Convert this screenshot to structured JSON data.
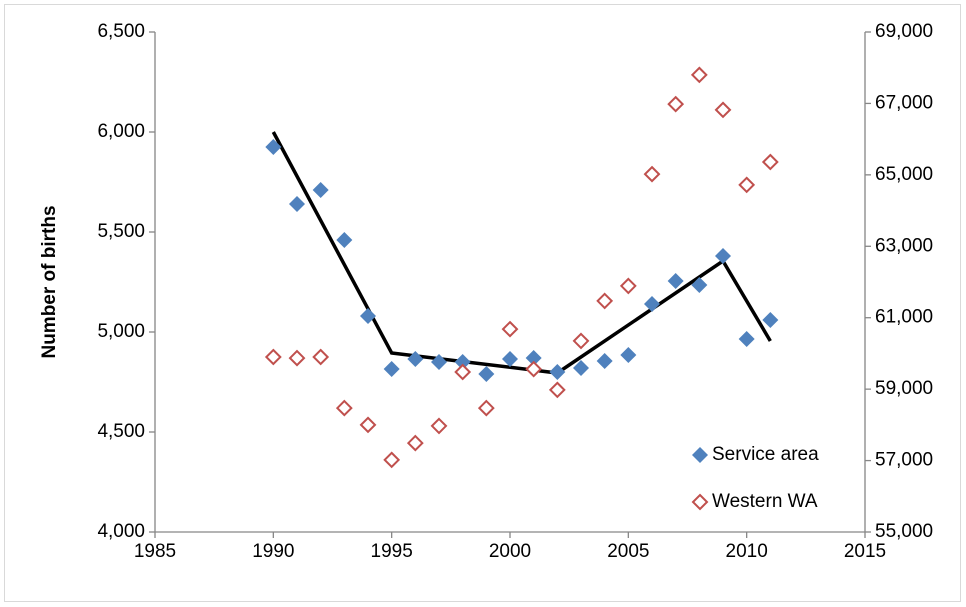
{
  "chart_data": {
    "type": "scatter",
    "y_label": "Number of births",
    "x": [
      1990,
      1991,
      1992,
      1993,
      1994,
      1995,
      1996,
      1997,
      1998,
      1999,
      2000,
      2001,
      2002,
      2003,
      2004,
      2005,
      2006,
      2007,
      2008,
      2009,
      2010,
      2011
    ],
    "series": [
      {
        "name": "Service area",
        "color": "#4f81bd",
        "marker": "filled-diamond",
        "values": [
          5925,
          5640,
          5710,
          5460,
          5080,
          4815,
          4865,
          4850,
          4850,
          4790,
          4865,
          4870,
          4800,
          4820,
          4855,
          4885,
          5140,
          5255,
          5235,
          5380,
          4965,
          5060
        ]
      },
      {
        "name": "Western WA",
        "color": "#c0504d",
        "marker": "hollow-diamond",
        "axis": "y2",
        "values": [
          59900,
          59870,
          59900,
          58470,
          58000,
          57020,
          57490,
          57970,
          59480,
          58470,
          60680,
          59560,
          58980,
          60350,
          61470,
          61890,
          65020,
          66980,
          67800,
          66820,
          64720,
          65360
        ]
      }
    ],
    "trend": {
      "color": "#000000",
      "x": [
        1990,
        1995,
        2002,
        2009,
        2011
      ],
      "values": [
        6000,
        4895,
        4795,
        5355,
        4955
      ]
    },
    "xlim": [
      1985,
      2015
    ],
    "xticks": [
      1985,
      1990,
      1995,
      2000,
      2005,
      2010,
      2015
    ],
    "ylim": [
      4000,
      6500
    ],
    "yticks": [
      {
        "value": 4000,
        "label": "4,000"
      },
      {
        "value": 4500,
        "label": "4,500"
      },
      {
        "value": 5000,
        "label": "5,000"
      },
      {
        "value": 5500,
        "label": "5,500"
      },
      {
        "value": 6000,
        "label": "6,000"
      },
      {
        "value": 6500,
        "label": "6,500"
      }
    ],
    "y2lim": [
      55000,
      69000
    ],
    "y2ticks": [
      {
        "value": 55000,
        "label": "55,000"
      },
      {
        "value": 57000,
        "label": "57,000"
      },
      {
        "value": 59000,
        "label": "59,000"
      },
      {
        "value": 61000,
        "label": "61,000"
      },
      {
        "value": 63000,
        "label": "63,000"
      },
      {
        "value": 65000,
        "label": "65,000"
      },
      {
        "value": 67000,
        "label": "67,000"
      },
      {
        "value": 69000,
        "label": "69,000"
      }
    ],
    "grid": false,
    "legend": "lower-right"
  }
}
